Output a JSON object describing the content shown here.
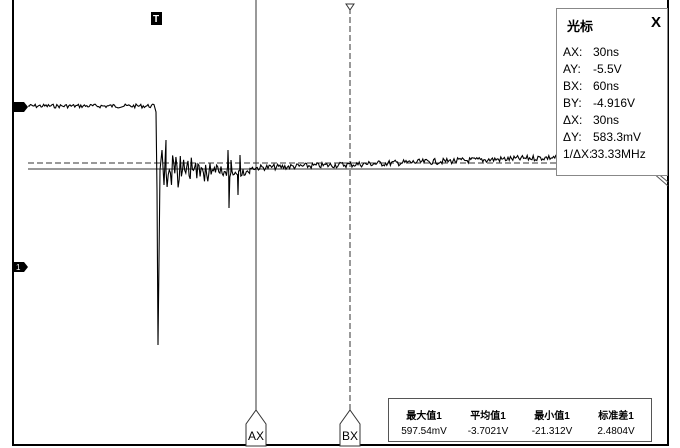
{
  "cursor_panel": {
    "title": "光标",
    "close_label": "X",
    "rows": [
      {
        "key": "AX:",
        "value": "30ns"
      },
      {
        "key": "AY:",
        "value": "-5.5V"
      },
      {
        "key": "BX:",
        "value": "60ns"
      },
      {
        "key": "BY:",
        "value": "-4.916V"
      },
      {
        "key": "ΔX:",
        "value": "30ns"
      },
      {
        "key": "ΔY:",
        "value": "583.3mV"
      },
      {
        "key": "1/ΔX:",
        "value": "33.33MHz"
      }
    ]
  },
  "measurements": {
    "headers": [
      "最大值1",
      "平均值1",
      "最小值1",
      "标准差1"
    ],
    "values": [
      "597.54mV",
      "-3.7021V",
      "-21.312V",
      "2.4804V"
    ]
  },
  "markers": {
    "trigger_top": "T",
    "channel_ref": "1",
    "cursor_a": "AX",
    "cursor_b": "BX"
  }
}
